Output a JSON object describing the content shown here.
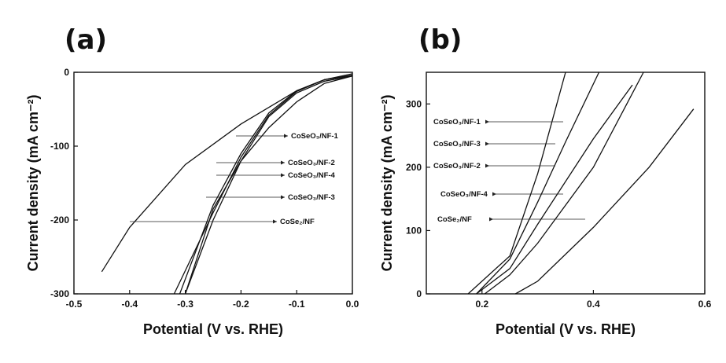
{
  "chart_data": [
    {
      "panel": "(a)",
      "type": "line",
      "xlabel": "Potential (V vs. RHE)",
      "ylabel": "Current density (mA cm⁻²)",
      "xlim": [
        -0.5,
        0.0
      ],
      "ylim": [
        -300,
        0
      ],
      "xticks": [
        "-0.5",
        "-0.4",
        "-0.3",
        "-0.2",
        "-0.1",
        "0.0"
      ],
      "yticks": [
        "-300",
        "-200",
        "-100",
        "0"
      ],
      "series": [
        {
          "name": "CoSeO₃/NF-1",
          "x": [
            0.0,
            -0.05,
            -0.1,
            -0.15,
            -0.2,
            -0.25,
            -0.3
          ],
          "y": [
            -5,
            -15,
            -40,
            -75,
            -120,
            -185,
            -300
          ]
        },
        {
          "name": "CoSeO₃/NF-2",
          "x": [
            0.0,
            -0.05,
            -0.1,
            -0.15,
            -0.2,
            -0.25,
            -0.31
          ],
          "y": [
            -4,
            -10,
            -25,
            -55,
            -110,
            -180,
            -300
          ]
        },
        {
          "name": "CoSeO₃/NF-4",
          "x": [
            0.0,
            -0.05,
            -0.1,
            -0.15,
            -0.2,
            -0.25,
            -0.32
          ],
          "y": [
            -4,
            -10,
            -26,
            -58,
            -115,
            -190,
            -300
          ]
        },
        {
          "name": "CoSeO₃/NF-3",
          "x": [
            0.0,
            -0.05,
            -0.1,
            -0.15,
            -0.2,
            -0.25,
            -0.3
          ],
          "y": [
            -5,
            -12,
            -28,
            -60,
            -120,
            -200,
            -300
          ]
        },
        {
          "name": "CoSe₂/NF",
          "x": [
            0.0,
            -0.05,
            -0.1,
            -0.2,
            -0.3,
            -0.4,
            -0.45
          ],
          "y": [
            -2,
            -10,
            -25,
            -70,
            -125,
            -210,
            -270
          ]
        }
      ]
    },
    {
      "panel": "(b)",
      "type": "line",
      "xlabel": "Potential (V vs. RHE)",
      "ylabel": "Current density (mA cm⁻²)",
      "xlim": [
        0.1,
        0.6
      ],
      "ylim": [
        0,
        350
      ],
      "xticks": [
        "0.2",
        "0.4",
        "0.6"
      ],
      "yticks": [
        "0",
        "100",
        "200",
        "300"
      ],
      "series": [
        {
          "name": "CoSeO₃/NF-1",
          "x": [
            0.175,
            0.25,
            0.3,
            0.35
          ],
          "y": [
            0,
            60,
            190,
            350
          ]
        },
        {
          "name": "CoSeO₃/NF-3",
          "x": [
            0.19,
            0.25,
            0.3,
            0.35,
            0.41
          ],
          "y": [
            0,
            55,
            145,
            240,
            350
          ]
        },
        {
          "name": "CoSeO₃/NF-2",
          "x": [
            0.19,
            0.25,
            0.3,
            0.4,
            0.47
          ],
          "y": [
            0,
            40,
            110,
            245,
            330
          ]
        },
        {
          "name": "CoSeO₃/NF-4",
          "x": [
            0.205,
            0.25,
            0.3,
            0.4,
            0.49
          ],
          "y": [
            0,
            30,
            80,
            200,
            350
          ]
        },
        {
          "name": "CoSe₂/NF",
          "x": [
            0.26,
            0.3,
            0.4,
            0.5,
            0.58
          ],
          "y": [
            0,
            20,
            105,
            200,
            292
          ]
        }
      ]
    }
  ],
  "panels": {
    "a": {
      "label": "(a)",
      "xlabel": "Potential (V vs. RHE)",
      "ylabel": "Current density (mA cm⁻²)",
      "series_labels": [
        "CoSeO₃/NF-1",
        "CoSeO₃/NF-2",
        "CoSeO₃/NF-4",
        "CoSeO₃/NF-3",
        "CoSe₂/NF"
      ]
    },
    "b": {
      "label": "(b)",
      "xlabel": "Potential (V vs. RHE)",
      "ylabel": "Current density (mA cm⁻²)",
      "series_labels": [
        "CoSeO₃/NF-1",
        "CoSeO₃/NF-3",
        "CoSeO₃/NF-2",
        "CoSeO₃/NF-4",
        "CoSe₂/NF"
      ]
    }
  }
}
